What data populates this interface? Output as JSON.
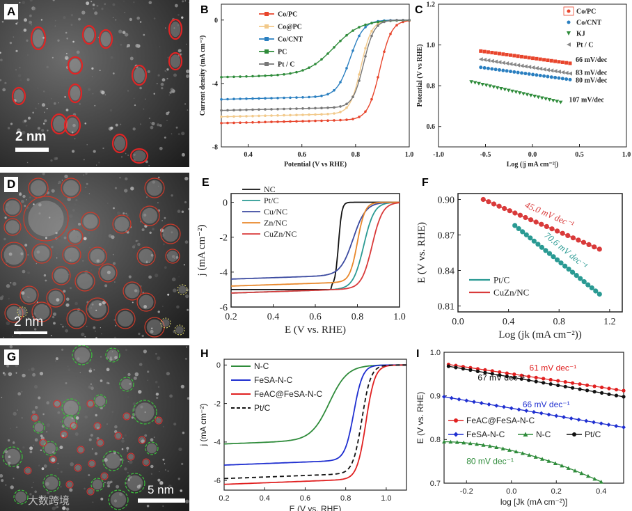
{
  "panels": {
    "A": {
      "label": "A",
      "scale_label": "2 nm"
    },
    "D": {
      "label": "D",
      "scale_label": "2 nm"
    },
    "G": {
      "label": "G",
      "scale_label": "5 nm",
      "watermark": "大数跨境"
    },
    "B": {
      "label": "B"
    },
    "C": {
      "label": "C"
    },
    "E": {
      "label": "E"
    },
    "F": {
      "label": "F"
    },
    "H": {
      "label": "H"
    },
    "I": {
      "label": "I"
    }
  },
  "chart_data": [
    {
      "id": "B",
      "type": "line",
      "xlabel": "Potential (V vs RHE)",
      "ylabel": "Current density (mA cm⁻²)",
      "xlim": [
        0.3,
        1.0
      ],
      "ylim": [
        -8,
        1
      ],
      "xticks": [
        "0.4",
        "0.6",
        "0.8",
        "1.0"
      ],
      "yticks": [
        "0",
        "-4",
        "-8"
      ],
      "legend": "top-left",
      "series": [
        {
          "name": "Co/PC",
          "color": "#e8452c",
          "limit": -6.5,
          "half": 0.89,
          "width": 0.022
        },
        {
          "name": "Co@PC",
          "color": "#f2c98a",
          "limit": -6.1,
          "half": 0.82,
          "width": 0.02
        },
        {
          "name": "Co/CNT",
          "color": "#2a7fc0",
          "limit": -5.0,
          "half": 0.78,
          "width": 0.025
        },
        {
          "name": "PC",
          "color": "#2e8b3a",
          "limit": -3.6,
          "half": 0.72,
          "width": 0.05
        },
        {
          "name": "Pt / C",
          "color": "#777777",
          "limit": -5.7,
          "half": 0.83,
          "width": 0.02
        }
      ]
    },
    {
      "id": "C",
      "type": "scatter",
      "xlabel": "Log (|j mA cm⁻²|)",
      "ylabel": "Potential (V vs RHE)",
      "xlim": [
        -1.0,
        1.0
      ],
      "ylim": [
        0.5,
        1.2
      ],
      "xticks": [
        "-1.0",
        "-0.5",
        "0.0",
        "0.5",
        "1.0"
      ],
      "yticks": [
        "0.6",
        "0.8",
        "1.0",
        "1.2"
      ],
      "legend": "top-right",
      "series": [
        {
          "name": "Co/PC",
          "color": "#e8452c",
          "x": [
            -0.55,
            0.4
          ],
          "y": [
            0.97,
            0.91
          ],
          "slope_label": "66 mV/dec"
        },
        {
          "name": "Co/CNT",
          "color": "#2a7fc0",
          "x": [
            -0.55,
            0.4
          ],
          "y": [
            0.89,
            0.83
          ],
          "slope_label": "80 mV/dec"
        },
        {
          "name": "KJ",
          "color": "#2e8b3a",
          "x": [
            -0.65,
            0.3
          ],
          "y": [
            0.82,
            0.72
          ],
          "slope_label": "107 mV/dec"
        },
        {
          "name": "Pt / C",
          "color": "#888888",
          "x": [
            -0.55,
            0.4
          ],
          "y": [
            0.93,
            0.86
          ],
          "slope_label": "83 mV/dec"
        }
      ]
    },
    {
      "id": "E",
      "type": "line",
      "xlabel": "E (V vs. RHE)",
      "ylabel": "j (mA cm⁻²)",
      "xlim": [
        0.2,
        1.0
      ],
      "ylim": [
        -6,
        0.5
      ],
      "xticks": [
        "0.2",
        "0.4",
        "0.6",
        "0.8",
        "1.0"
      ],
      "yticks": [
        "0",
        "-2",
        "-4",
        "-6"
      ],
      "legend": "top-left",
      "series": [
        {
          "name": "NC",
          "color": "#111111",
          "limit": -5.0,
          "half": 0.71,
          "width": 0.008
        },
        {
          "name": "Pt/C",
          "color": "#2a9a93",
          "limit": -5.2,
          "half": 0.83,
          "width": 0.025
        },
        {
          "name": "Cu/NC",
          "color": "#3b4aa0",
          "limit": -4.4,
          "half": 0.78,
          "width": 0.03
        },
        {
          "name": "Zn/NC",
          "color": "#e8872a",
          "limit": -4.8,
          "half": 0.8,
          "width": 0.018
        },
        {
          "name": "CuZn/NC",
          "color": "#d93a3a",
          "limit": -5.2,
          "half": 0.87,
          "width": 0.025
        }
      ]
    },
    {
      "id": "F",
      "type": "scatter",
      "xlabel": "Log (jk (mA cm⁻²))",
      "ylabel": "E (V vs. RHE)",
      "xlim": [
        0.0,
        1.3
      ],
      "ylim": [
        0.805,
        0.905
      ],
      "xticks": [
        "0.0",
        "0.4",
        "0.8",
        "1.2"
      ],
      "yticks": [
        "0.81",
        "0.84",
        "0.87",
        "0.90"
      ],
      "legend": "bottom-left",
      "series": [
        {
          "name": "Pt/C",
          "color": "#2a9a93",
          "x": [
            0.45,
            1.12
          ],
          "y": [
            0.878,
            0.82
          ],
          "slope_label": "70.6 mV dec⁻¹"
        },
        {
          "name": "CuZn/NC",
          "color": "#d93a3a",
          "x": [
            0.2,
            1.12
          ],
          "y": [
            0.9,
            0.858
          ],
          "slope_label": "45.0 mV dec⁻¹"
        }
      ]
    },
    {
      "id": "H",
      "type": "line",
      "xlabel": "E (V vs. RHE)",
      "ylabel": "j (mA cm⁻²)",
      "xlim": [
        0.2,
        1.1
      ],
      "ylim": [
        -6.5,
        0.3
      ],
      "xticks": [
        "0.2",
        "0.4",
        "0.6",
        "0.8",
        "1.0"
      ],
      "yticks": [
        "0",
        "-2",
        "-4",
        "-6"
      ],
      "legend": "top-left",
      "series": [
        {
          "name": "N-C",
          "color": "#2e8b3a",
          "limit": -4.1,
          "half": 0.72,
          "width": 0.045
        },
        {
          "name": "FeSA-N-C",
          "color": "#1f2fd0",
          "limit": -5.2,
          "half": 0.84,
          "width": 0.022
        },
        {
          "name": "FeAC@FeSA-N-C",
          "color": "#e02020",
          "limit": -6.2,
          "half": 0.9,
          "width": 0.022
        },
        {
          "name": "Pt/C",
          "color": "#111111",
          "limit": -5.9,
          "half": 0.88,
          "width": 0.022,
          "dashed": true
        }
      ]
    },
    {
      "id": "I",
      "type": "scatter",
      "xlabel": "log [Jk (mA cm⁻²)]",
      "ylabel": "E (V vs. RHE)",
      "xlim": [
        -0.3,
        0.5
      ],
      "ylim": [
        0.7,
        1.0
      ],
      "xticks": [
        "-0.2",
        "0.0",
        "0.2",
        "0.4"
      ],
      "yticks": [
        "0.7",
        "0.8",
        "0.9",
        "1.0"
      ],
      "legend": "bottom-left",
      "series": [
        {
          "name": "FeAC@FeSA-N-C",
          "color": "#e02020",
          "x": [
            -0.28,
            0.5
          ],
          "y": [
            0.972,
            0.912
          ],
          "slope_label": "61 mV dec⁻¹"
        },
        {
          "name": "FeSA-N-C",
          "color": "#1f2fd0",
          "x": [
            -0.3,
            0.5
          ],
          "y": [
            0.898,
            0.828
          ],
          "slope_label": "66 mV dec⁻¹"
        },
        {
          "name": "N-C",
          "color": "#2e8b3a",
          "x": [
            -0.3,
            0.4
          ],
          "y": [
            0.795,
            0.703
          ],
          "slope_label": "80 mV dec⁻¹"
        },
        {
          "name": "Pt/C",
          "color": "#111111",
          "x": [
            -0.28,
            0.5
          ],
          "y": [
            0.968,
            0.898
          ],
          "slope_label": "67 mV dec⁻¹"
        }
      ]
    }
  ]
}
